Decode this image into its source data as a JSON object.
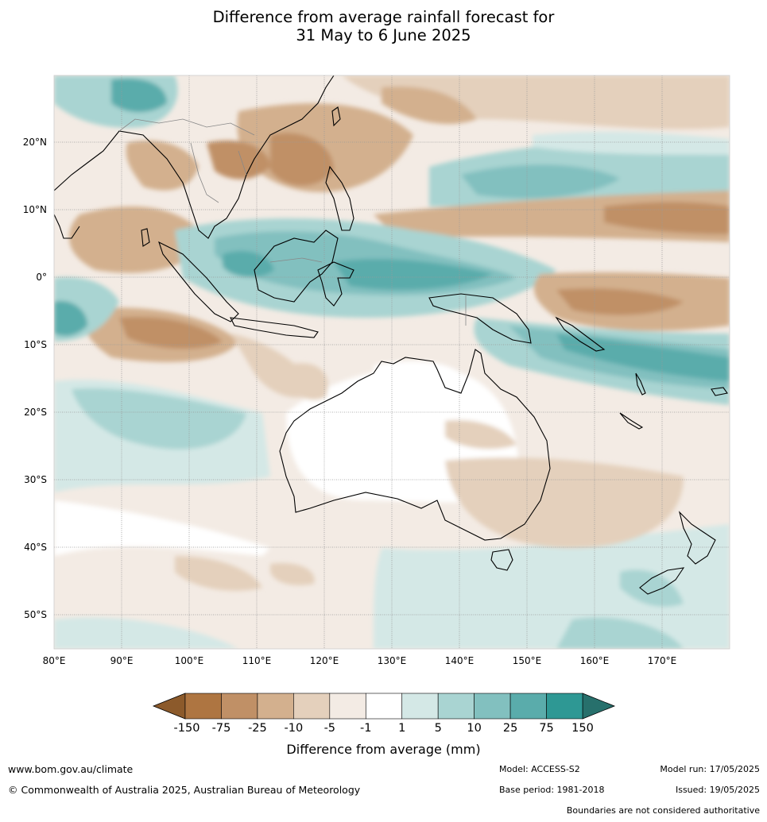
{
  "title": {
    "line1": "Difference from average rainfall forecast for",
    "line2": "31 May to 6 June 2025"
  },
  "map": {
    "lat_labels": [
      "20°N",
      "10°N",
      "0°",
      "10°S",
      "20°S",
      "30°S",
      "40°S",
      "50°S"
    ],
    "lon_labels": [
      "80°E",
      "90°E",
      "100°E",
      "110°E",
      "120°E",
      "130°E",
      "140°E",
      "150°E",
      "160°E",
      "170°E"
    ]
  },
  "legend": {
    "ticks": [
      "-150",
      "-75",
      "-25",
      "-10",
      "-5",
      "-1",
      "1",
      "5",
      "10",
      "25",
      "75",
      "150"
    ],
    "colors": [
      "#8c5a2b",
      "#ae7541",
      "#c09066",
      "#d3b08e",
      "#e4d0bc",
      "#f3ebe4",
      "#ffffff",
      "#d4e8e6",
      "#a9d4d2",
      "#82c0bf",
      "#5aacab",
      "#2e9894",
      "#27706c"
    ],
    "label": "Difference from average (mm)"
  },
  "footer": {
    "website": "www.bom.gov.au/climate",
    "copyright": "© Commonwealth of Australia 2025, Australian Bureau of Meteorology",
    "model": "Model: ACCESS-S2",
    "base_period": "Base period: 1981-2018",
    "model_run": "Model run: 17/05/2025",
    "issued": "Issued: 19/05/2025",
    "disclaimer": "Boundaries are not considered authoritative"
  }
}
